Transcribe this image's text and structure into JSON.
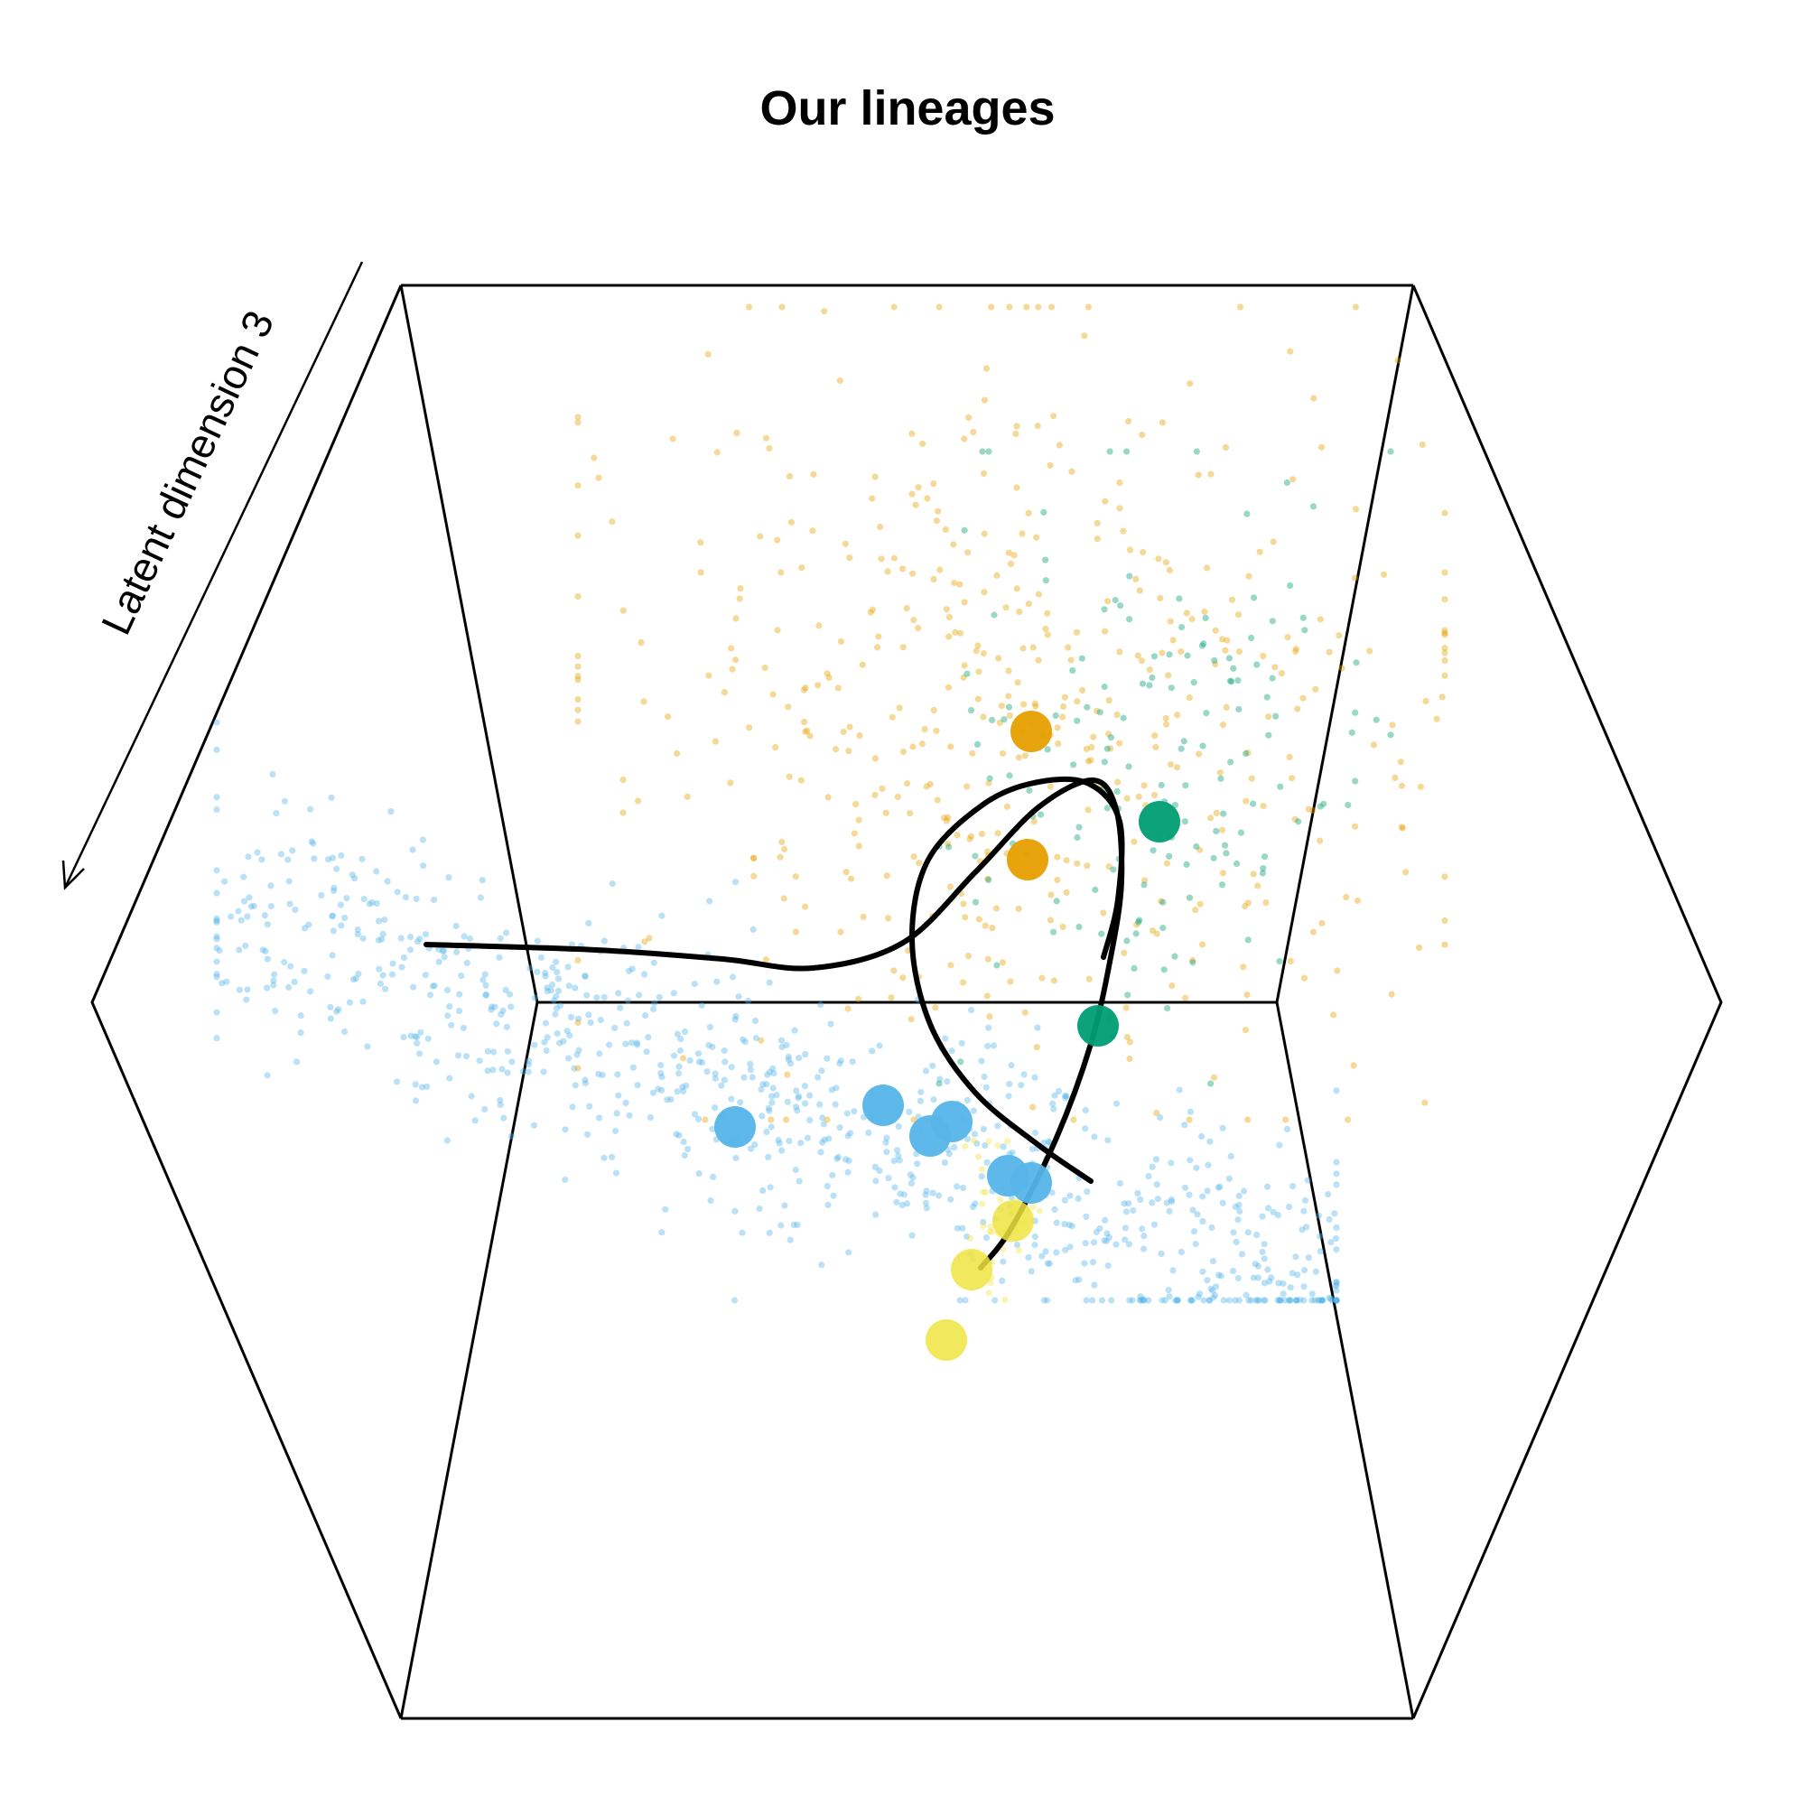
{
  "chart_data": {
    "type": "scatter",
    "title": "Our lineages",
    "zlabel": "Latent dimension 3",
    "colors": {
      "blue": "#56B4E9",
      "orange": "#E69F00",
      "green": "#009E73",
      "yellow": "#F0E442",
      "curve": "#000000"
    },
    "grid": false,
    "legend": "none",
    "cell_groups": [
      {
        "color": "blue",
        "count": 900,
        "x_range": [
          0.12,
          0.74
        ],
        "y_range": [
          0.4,
          0.72
        ]
      },
      {
        "color": "orange",
        "count": 520,
        "x_range": [
          0.32,
          0.8
        ],
        "y_range": [
          0.17,
          0.62
        ]
      },
      {
        "color": "green",
        "count": 160,
        "x_range": [
          0.52,
          0.77
        ],
        "y_range": [
          0.25,
          0.6
        ]
      },
      {
        "color": "yellow",
        "count": 40,
        "x_range": [
          0.53,
          0.58
        ],
        "y_range": [
          0.62,
          0.73
        ]
      }
    ],
    "cluster_centers": [
      {
        "color": "orange",
        "x": 0.571,
        "y": 0.405
      },
      {
        "color": "orange",
        "x": 0.569,
        "y": 0.476
      },
      {
        "color": "green",
        "x": 0.642,
        "y": 0.455
      },
      {
        "color": "green",
        "x": 0.608,
        "y": 0.568
      },
      {
        "color": "blue",
        "x": 0.407,
        "y": 0.624
      },
      {
        "color": "blue",
        "x": 0.489,
        "y": 0.612
      },
      {
        "color": "blue",
        "x": 0.515,
        "y": 0.629
      },
      {
        "color": "blue",
        "x": 0.527,
        "y": 0.621
      },
      {
        "color": "blue",
        "x": 0.558,
        "y": 0.651
      },
      {
        "color": "blue",
        "x": 0.571,
        "y": 0.655
      },
      {
        "color": "yellow",
        "x": 0.561,
        "y": 0.676
      },
      {
        "color": "yellow",
        "x": 0.538,
        "y": 0.703
      },
      {
        "color": "yellow",
        "x": 0.524,
        "y": 0.742
      }
    ],
    "lineage_curves": [
      [
        [
          0.236,
          0.523
        ],
        [
          0.33,
          0.526
        ],
        [
          0.4,
          0.531
        ],
        [
          0.45,
          0.536
        ],
        [
          0.5,
          0.522
        ],
        [
          0.54,
          0.483
        ],
        [
          0.575,
          0.447
        ],
        [
          0.605,
          0.432
        ],
        [
          0.618,
          0.448
        ],
        [
          0.621,
          0.488
        ],
        [
          0.615,
          0.53
        ],
        [
          0.604,
          0.578
        ],
        [
          0.585,
          0.63
        ],
        [
          0.56,
          0.68
        ],
        [
          0.543,
          0.702
        ]
      ],
      [
        [
          0.604,
          0.654
        ],
        [
          0.575,
          0.634
        ],
        [
          0.54,
          0.605
        ],
        [
          0.515,
          0.567
        ],
        [
          0.505,
          0.52
        ],
        [
          0.514,
          0.476
        ],
        [
          0.545,
          0.445
        ],
        [
          0.575,
          0.433
        ],
        [
          0.603,
          0.434
        ],
        [
          0.62,
          0.455
        ],
        [
          0.619,
          0.498
        ],
        [
          0.611,
          0.53
        ]
      ]
    ]
  }
}
